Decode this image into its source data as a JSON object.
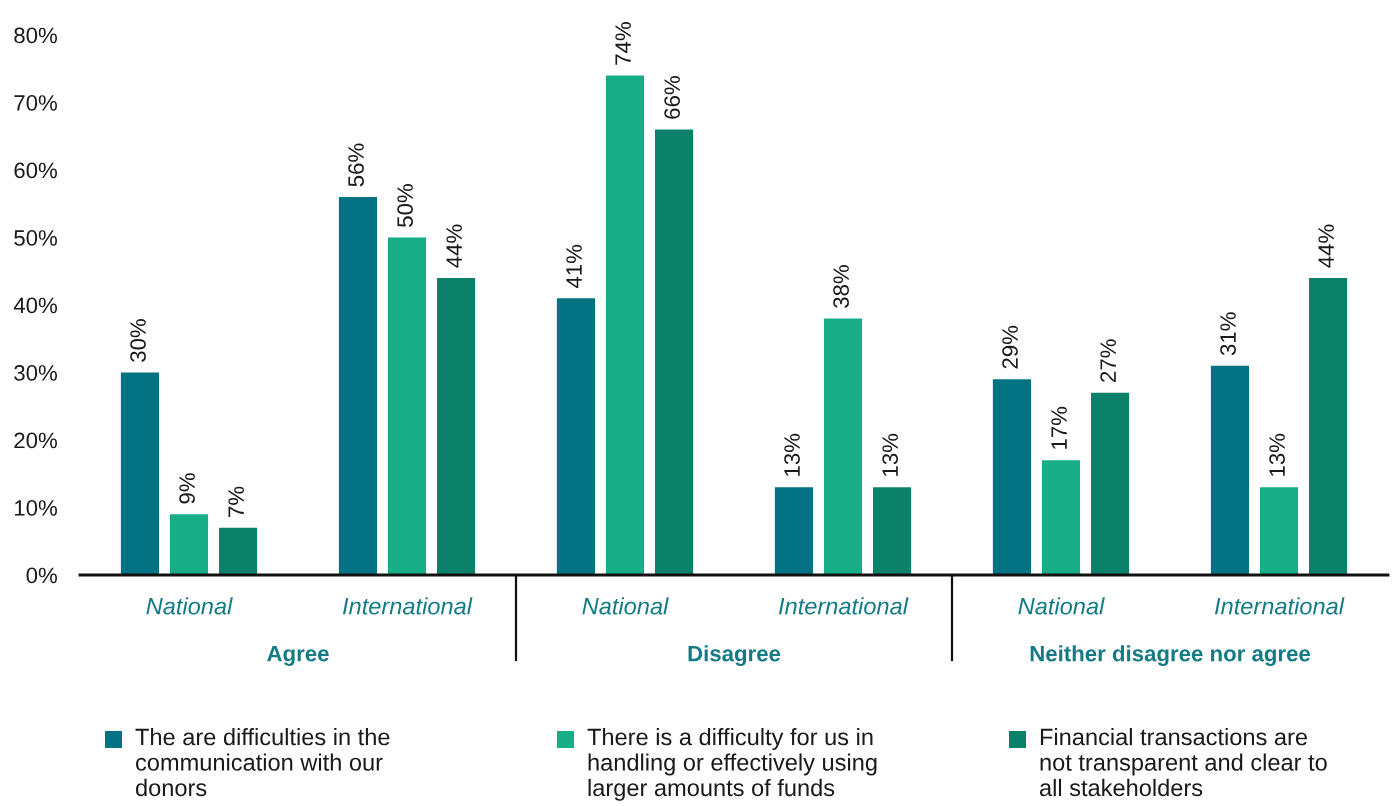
{
  "chart_data": {
    "type": "bar",
    "categories": [
      "National",
      "International",
      "National",
      "International",
      "National",
      "International"
    ],
    "series": [
      {
        "name": "The are difficulties in the communication with our donors",
        "color": "#037282",
        "values": [
          30,
          56,
          41,
          13,
          29,
          31
        ],
        "value_labels": [
          "30%",
          "56%",
          "41%",
          "13%",
          "29%",
          "31%"
        ]
      },
      {
        "name": "There is a difficulty for us in handling or effectively using larger amounts of funds",
        "color": "#17ad86",
        "values": [
          9,
          50,
          74,
          38,
          17,
          13
        ],
        "value_labels": [
          "9%",
          "50%",
          "74%",
          "38%",
          "17%",
          "13%"
        ]
      },
      {
        "name": "Financial transactions are not transparent and clear to all stakeholders",
        "color": "#0b8169",
        "values": [
          7,
          44,
          66,
          13,
          27,
          44
        ],
        "value_labels": [
          "7%",
          "44%",
          "66%",
          "13%",
          "27%",
          "44%"
        ]
      }
    ],
    "annotations": [
      "Agree",
      "Disagree",
      "Neither disagree nor agree"
    ],
    "ylim": [
      0,
      80
    ],
    "yticks": [
      {
        "value": 0,
        "label": "0%"
      },
      {
        "value": 10,
        "label": "10%"
      },
      {
        "value": 20,
        "label": "20%"
      },
      {
        "value": 30,
        "label": "30%"
      },
      {
        "value": 40,
        "label": "40%"
      },
      {
        "value": 50,
        "label": "50%"
      },
      {
        "value": 60,
        "label": "60%"
      },
      {
        "value": 70,
        "label": "70%"
      },
      {
        "value": 80,
        "label": "80%"
      }
    ],
    "legend": "bottom"
  }
}
